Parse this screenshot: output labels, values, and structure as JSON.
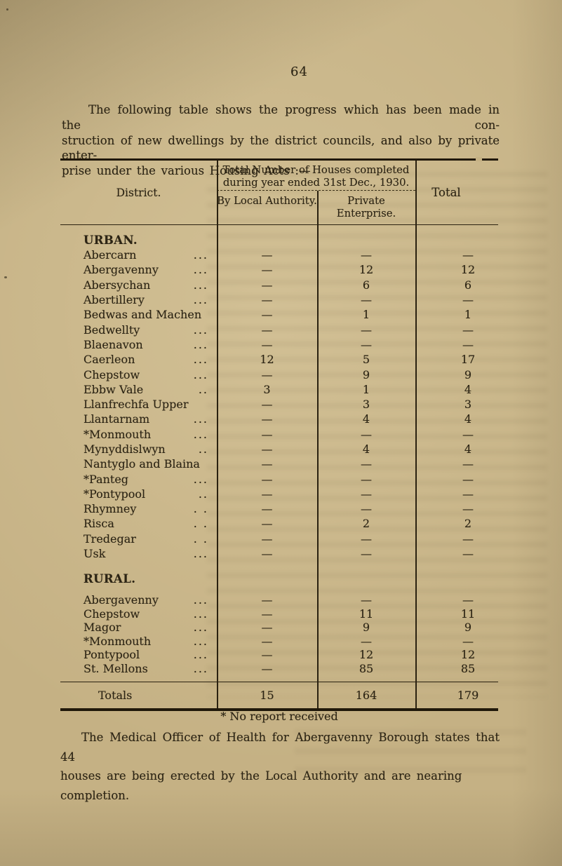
{
  "page": {
    "number": "64"
  },
  "intro": {
    "line1": "The following table shows the progress which has been made in the con-",
    "line2": "struction of new dwellings by the district councils, and also by private enter-",
    "line3": "prise under the various Housing Acts :—"
  },
  "table": {
    "col_district": "District.",
    "group_header_line1": "Total Number of Houses completed",
    "group_header_line2": "during year ended 31st Dec., 1930.",
    "col_local": "By Local Authority.",
    "col_private": "Private Enterprise.",
    "col_total": "Total",
    "urban_label": "URBAN.",
    "rural_label": "RURAL.",
    "urban_rows": [
      {
        "name": "Abercarn",
        "dots": "...",
        "local": "—",
        "private": "—",
        "total": "—"
      },
      {
        "name": "Abergavenny",
        "dots": "...",
        "local": "—",
        "private": "12",
        "total": "12"
      },
      {
        "name": "Abersychan",
        "dots": "...",
        "local": "—",
        "private": "6",
        "total": "6"
      },
      {
        "name": "Abertillery",
        "dots": "...",
        "local": "—",
        "private": "—",
        "total": "—"
      },
      {
        "name": "Bedwas and Machen",
        "dots": "",
        "local": "—",
        "private": "1",
        "total": "1"
      },
      {
        "name": "Bedwellty",
        "dots": "...",
        "local": "—",
        "private": "—",
        "total": "—"
      },
      {
        "name": "Blaenavon",
        "dots": "...",
        "local": "—",
        "private": "—",
        "total": "—"
      },
      {
        "name": "Caerleon",
        "dots": "...",
        "local": "12",
        "private": "5",
        "total": "17"
      },
      {
        "name": "Chepstow",
        "dots": "...",
        "local": "—",
        "private": "9",
        "total": "9"
      },
      {
        "name": "Ebbw Vale",
        "dots": "..",
        "local": "3",
        "private": "1",
        "total": "4"
      },
      {
        "name": "Llanfrechfa Upper",
        "dots": "",
        "local": "—",
        "private": "3",
        "total": "3"
      },
      {
        "name": "Llantarnam",
        "dots": "...",
        "local": "—",
        "private": "4",
        "total": "4"
      },
      {
        "name": "*Monmouth",
        "dots": "...",
        "local": "—",
        "private": "—",
        "total": "—"
      },
      {
        "name": "Mynyddislwyn",
        "dots": "..",
        "local": "—",
        "private": "4",
        "total": "4"
      },
      {
        "name": "Nantyglo and Blaina",
        "dots": "",
        "local": "—",
        "private": "—",
        "total": "—"
      },
      {
        "name": "*Panteg",
        "dots": "...",
        "local": "—",
        "private": "—",
        "total": "—"
      },
      {
        "name": "*Pontypool",
        "dots": "..",
        "local": "—",
        "private": "—",
        "total": "—"
      },
      {
        "name": "Rhymney",
        "dots": ". .",
        "local": "—",
        "private": "—",
        "total": "—"
      },
      {
        "name": "Risca",
        "dots": ". .",
        "local": "—",
        "private": "2",
        "total": "2"
      },
      {
        "name": "Tredegar",
        "dots": ". .",
        "local": "—",
        "private": "—",
        "total": "—"
      },
      {
        "name": "Usk",
        "dots": "...",
        "local": "—",
        "private": "—",
        "total": "—"
      }
    ],
    "rural_rows": [
      {
        "name": "Abergavenny",
        "dots": "...",
        "local": "—",
        "private": "—",
        "total": "—"
      },
      {
        "name": "Chepstow",
        "dots": "...",
        "local": "—",
        "private": "11",
        "total": "11"
      },
      {
        "name": "Magor",
        "dots": "...",
        "local": "—",
        "private": "9",
        "total": "9"
      },
      {
        "name": "*Monmouth",
        "dots": "...",
        "local": "—",
        "private": "—",
        "total": "—"
      },
      {
        "name": "Pontypool",
        "dots": "...",
        "local": "—",
        "private": "12",
        "total": "12"
      },
      {
        "name": "St. Mellons",
        "dots": "...",
        "local": "—",
        "private": "85",
        "total": "85"
      }
    ],
    "totals": {
      "label": "Totals",
      "local": "15",
      "private": "164",
      "total": "179"
    }
  },
  "footnote": "* No report received",
  "closing": {
    "line1": "The Medical Officer of Health for Abergavenny Borough states that 44",
    "line2": "houses are being erected by the Local Authority and are nearing completion."
  },
  "colors": {
    "paper": "#c5b184",
    "ink": "#2c2414"
  }
}
